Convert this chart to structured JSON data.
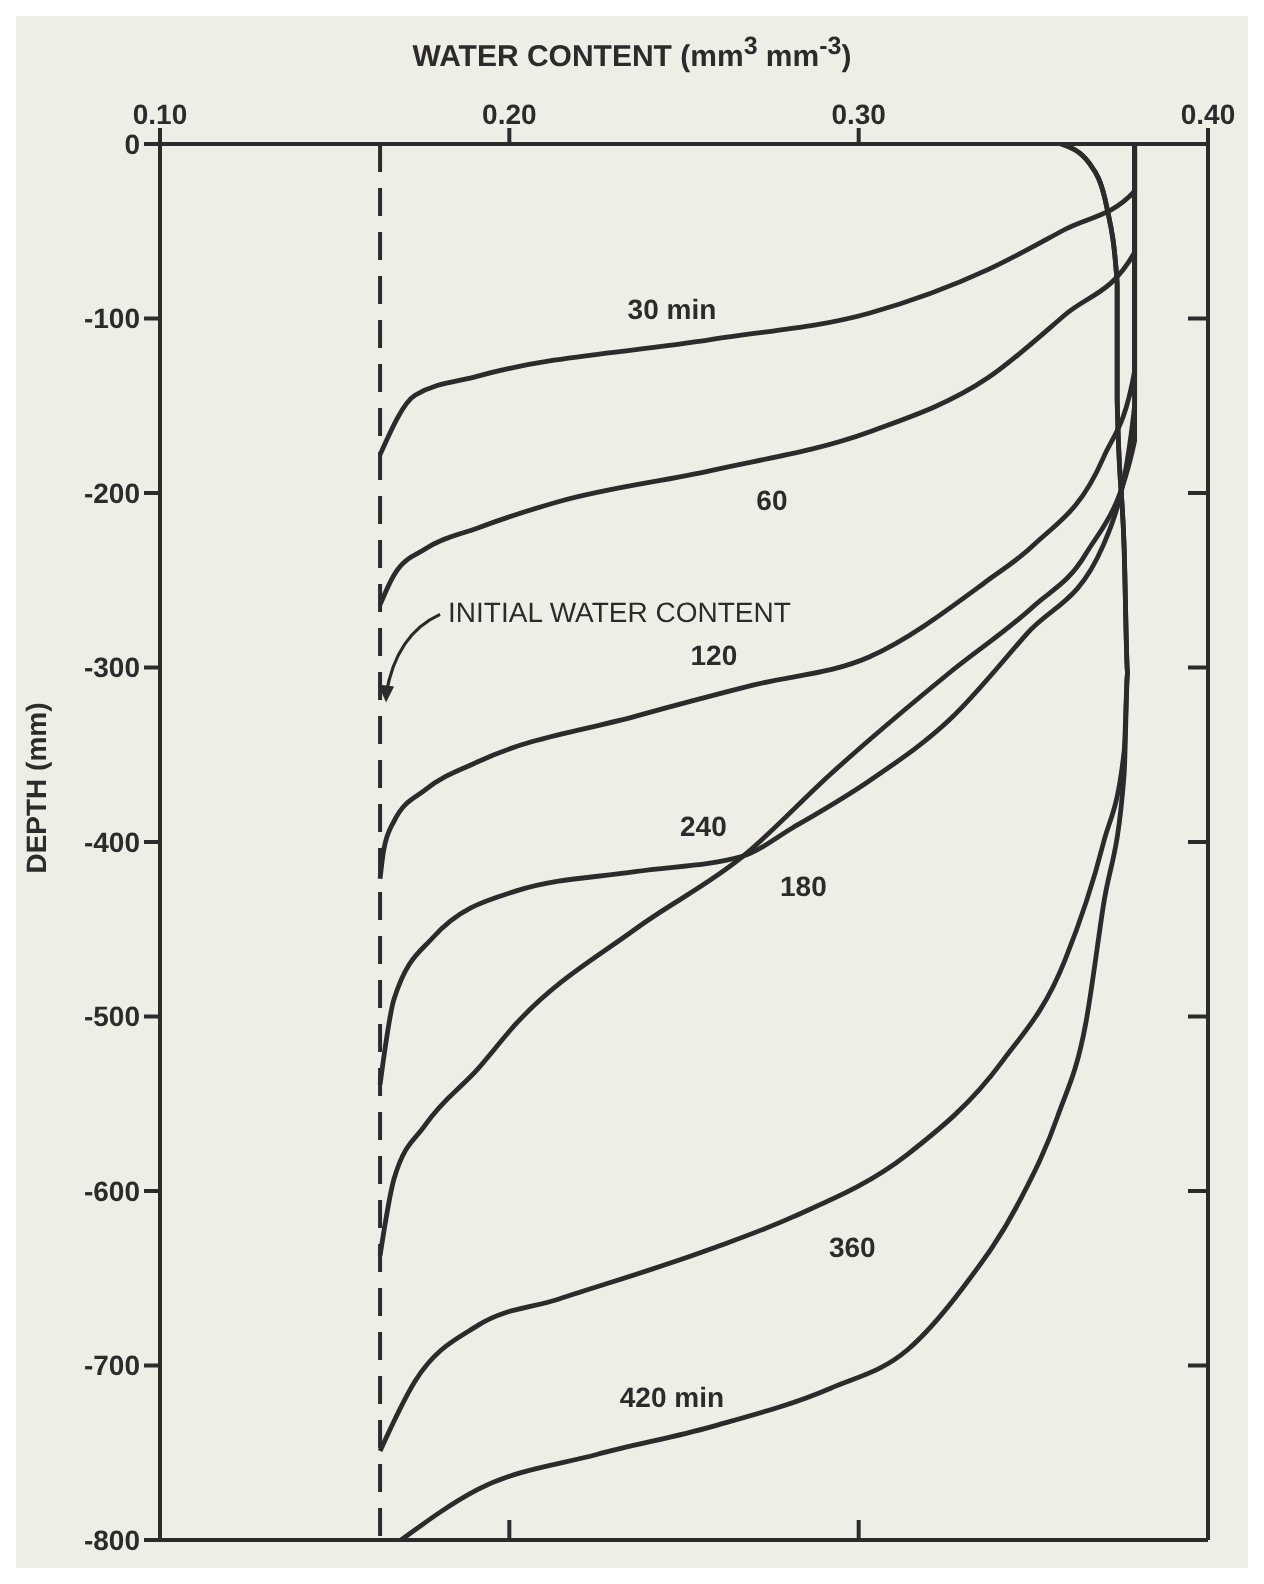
{
  "chart_data": {
    "type": "line",
    "xlabel": "WATER CONTENT (mm$^{3}$ mm$^{-3}$)",
    "ylabel": "DEPTH (mm)",
    "xlim": [
      0.1,
      0.4
    ],
    "xticks": [
      {
        "value": 0.1,
        "label": "0.10"
      },
      {
        "value": 0.2,
        "label": "0.20"
      },
      {
        "value": 0.3,
        "label": "0.30"
      },
      {
        "value": 0.4,
        "label": "0.40"
      }
    ],
    "ylim": [
      -800,
      0
    ],
    "yticks": [
      -800,
      -700,
      -600,
      -500,
      -400,
      -300,
      -200,
      -100,
      0
    ],
    "marker": "none",
    "line_style": "solid",
    "series": [
      {
        "name": "30 min",
        "color": "#2b2b2b",
        "x": [
          0.379,
          0.379,
          0.359,
          0.337,
          0.303,
          0.258,
          0.191,
          0.173,
          0.163
        ],
        "values": [
          0,
          -27,
          -49,
          -72,
          -97,
          -112,
          -133,
          -144,
          -178
        ]
      },
      {
        "name": "60",
        "color": "#2b2b2b",
        "x": [
          0.379,
          0.379,
          0.359,
          0.337,
          0.303,
          0.258,
          0.214,
          0.191,
          0.176,
          0.167,
          0.163
        ],
        "values": [
          0,
          -62,
          -98,
          -134,
          -165,
          -187,
          -205,
          -220,
          -232,
          -247,
          -264
        ]
      },
      {
        "name": "120",
        "color": "#2b2b2b",
        "x": [
          0.379,
          0.379,
          0.37,
          0.35,
          0.337,
          0.303,
          0.27,
          0.236,
          0.191,
          0.176,
          0.167,
          0.164,
          0.163
        ],
        "values": [
          0,
          -130,
          -180,
          -230,
          -250,
          -294,
          -310,
          -328,
          -354,
          -370,
          -388,
          -405,
          -421
        ]
      },
      {
        "name": "180",
        "color": "#2b2b2b",
        "x": [
          0.379,
          0.379,
          0.37,
          0.348,
          0.326,
          0.303,
          0.281,
          0.267,
          0.236,
          0.202,
          0.178,
          0.167,
          0.163
        ],
        "values": [
          0,
          -150,
          -230,
          -281,
          -330,
          -365,
          -392,
          -408,
          -417,
          -428,
          -455,
          -490,
          -539
        ]
      },
      {
        "name": "240",
        "color": "#2b2b2b",
        "x": [
          0.379,
          0.379,
          0.365,
          0.35,
          0.326,
          0.292,
          0.267,
          0.236,
          0.202,
          0.191,
          0.176,
          0.167,
          0.163
        ],
        "values": [
          0,
          -170,
          -235,
          -265,
          -303,
          -361,
          -408,
          -450,
          -504,
          -530,
          -562,
          -593,
          -637
        ]
      },
      {
        "name": "360",
        "color": "#2b2b2b",
        "x": [
          0.358,
          0.366,
          0.371,
          0.374,
          0.374,
          0.376,
          0.377,
          0.376,
          0.37,
          0.359,
          0.341,
          0.314,
          0.281,
          0.258,
          0.214,
          0.191,
          0.173,
          0.163
        ],
        "values": [
          0,
          -11,
          -36,
          -80,
          -147,
          -232,
          -303,
          -348,
          -401,
          -468,
          -526,
          -579,
          -615,
          -633,
          -662,
          -677,
          -709,
          -749
        ]
      },
      {
        "name": "420 min",
        "color": "#2b2b2b",
        "x": [
          0.358,
          0.366,
          0.371,
          0.374,
          0.374,
          0.376,
          0.377,
          0.376,
          0.37,
          0.365,
          0.357,
          0.346,
          0.33,
          0.314,
          0.292,
          0.258,
          0.225,
          0.191,
          0.169
        ],
        "values": [
          0,
          -11,
          -36,
          -80,
          -147,
          -232,
          -303,
          -361,
          -437,
          -504,
          -557,
          -606,
          -655,
          -691,
          -713,
          -735,
          -751,
          -771,
          -800
        ]
      }
    ],
    "ref_lines": [
      {
        "axis": "x",
        "value": 0.163,
        "color": "#2b2b2b",
        "line_style": "dashed"
      }
    ],
    "annotations": [
      {
        "text": "INITIAL WATER CONTENT",
        "x": 0.163,
        "y": -320
      }
    ]
  }
}
